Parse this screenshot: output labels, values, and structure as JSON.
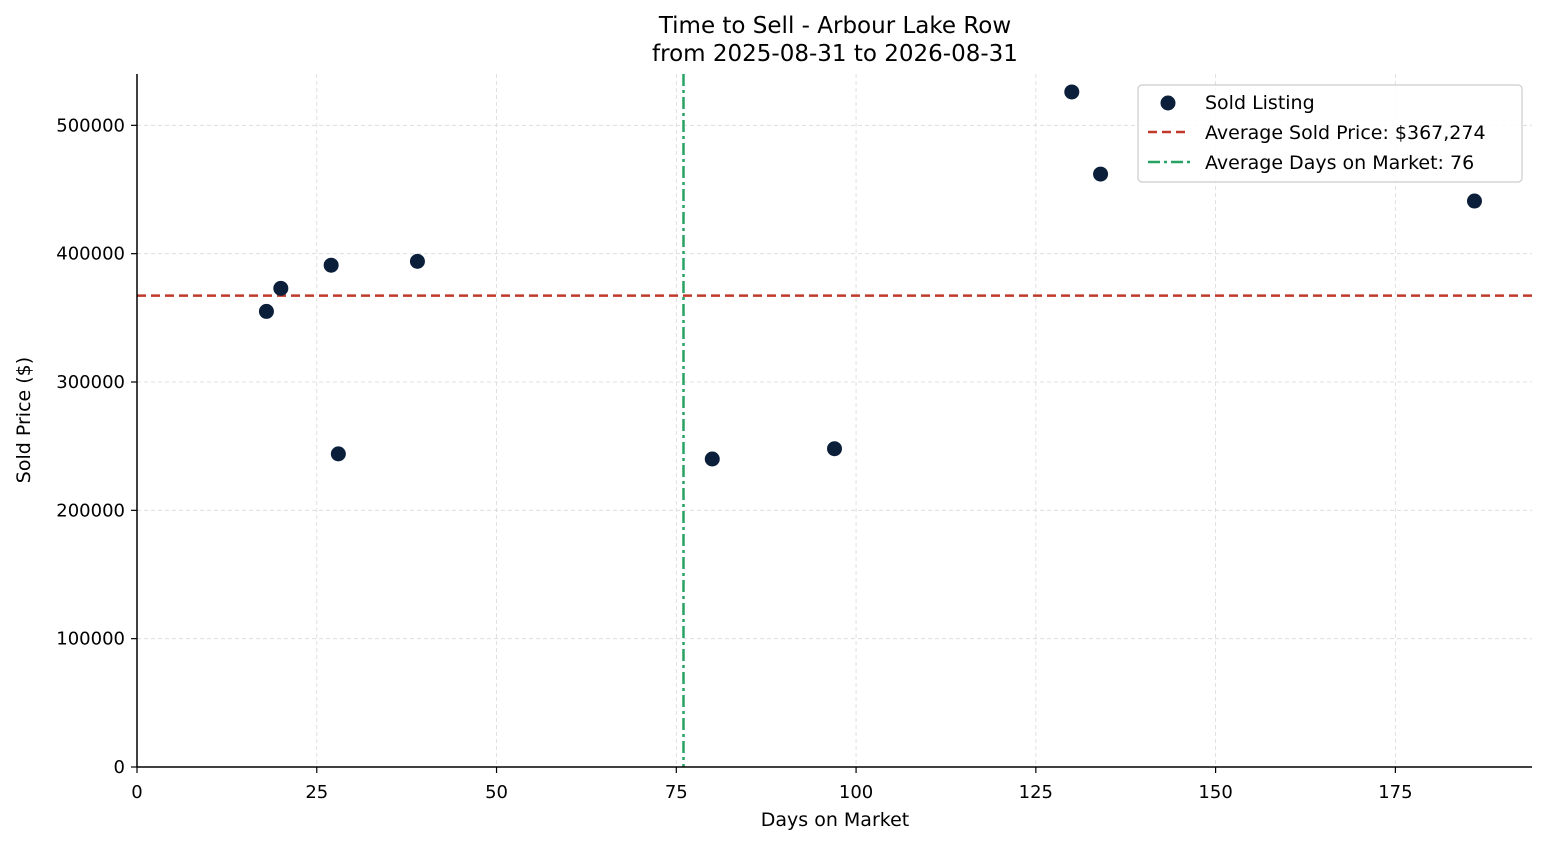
{
  "chart_data": {
    "type": "scatter",
    "title": "Time to Sell - Arbour Lake Row",
    "subtitle": "from 2025-08-31 to 2026-08-31",
    "xlabel": "Days on Market",
    "ylabel": "Sold Price ($)",
    "xlim": [
      0,
      194
    ],
    "ylim": [
      0,
      540000
    ],
    "xticks": [
      0,
      25,
      50,
      75,
      100,
      125,
      150,
      175
    ],
    "yticks": [
      0,
      100000,
      200000,
      300000,
      400000,
      500000
    ],
    "grid": true,
    "legend_position": "top-right",
    "series": [
      {
        "name": "Sold Listing",
        "color": "#0b1f3a",
        "points": [
          {
            "x": 18,
            "y": 355000
          },
          {
            "x": 20,
            "y": 373000
          },
          {
            "x": 27,
            "y": 391000
          },
          {
            "x": 28,
            "y": 244000
          },
          {
            "x": 39,
            "y": 394000
          },
          {
            "x": 80,
            "y": 240000
          },
          {
            "x": 97,
            "y": 248000
          },
          {
            "x": 130,
            "y": 526000
          },
          {
            "x": 134,
            "y": 462000
          },
          {
            "x": 186,
            "y": 441000
          }
        ]
      }
    ],
    "reference_lines": [
      {
        "name": "Average Sold Price: $367,274",
        "orientation": "horizontal",
        "value": 367274,
        "color": "#c0392b",
        "style": "dashed"
      },
      {
        "name": "Average Days on Market: 76",
        "orientation": "vertical",
        "value": 76,
        "color": "#27a263",
        "style": "dashdot"
      }
    ]
  }
}
